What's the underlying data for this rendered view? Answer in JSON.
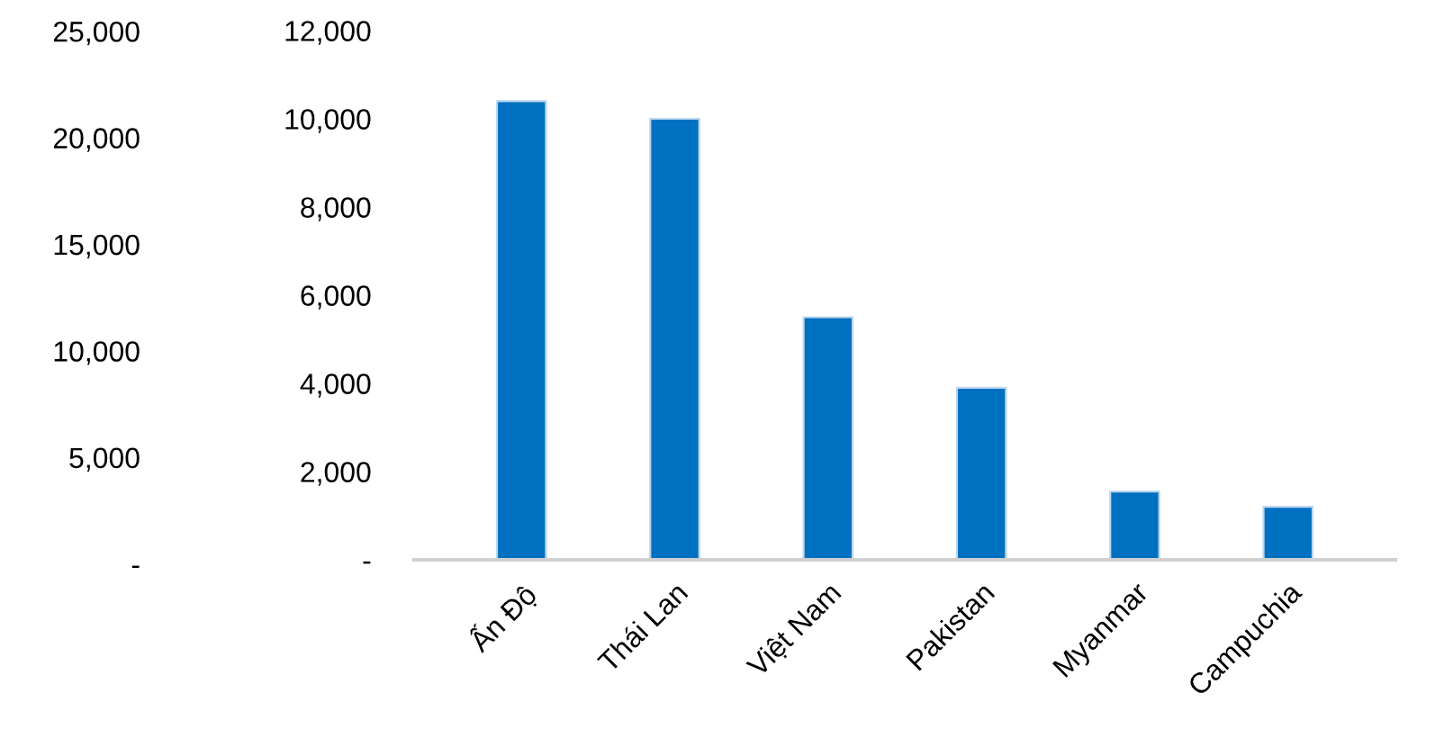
{
  "chart_data": {
    "type": "bar",
    "categories": [
      "Ấn Độ",
      "Thái Lan",
      "Việt Nam",
      "Pakistan",
      "Myanmar",
      "Campuchia"
    ],
    "series": [
      {
        "color": "#0070c0",
        "values": [
          10400,
          10000,
          5500,
          3900,
          1550,
          1200
        ]
      }
    ],
    "ylim": [
      0,
      12000
    ],
    "yticks": [
      {
        "value": 0,
        "label": "-"
      },
      {
        "value": 2000,
        "label": "2,000"
      },
      {
        "value": 4000,
        "label": "4,000"
      },
      {
        "value": 6000,
        "label": "6,000"
      },
      {
        "value": 8000,
        "label": "8,000"
      },
      {
        "value": 10000,
        "label": "10,000"
      },
      {
        "value": 12000,
        "label": "12,000"
      }
    ],
    "annotations": [
      "25,000",
      "20,000",
      "15,000",
      "10,000",
      "5,000",
      "-"
    ],
    "grid": false,
    "legend": false
  }
}
